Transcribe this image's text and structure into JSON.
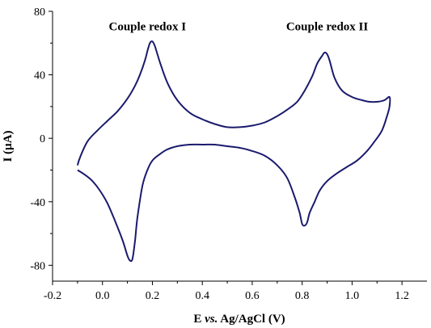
{
  "chart_data": {
    "type": "line",
    "xlabel": {
      "prefix": "E ",
      "italic": "vs.",
      "suffix": " Ag/AgCl (V)"
    },
    "ylabel": "I (µA)",
    "xlim": [
      -0.2,
      1.3
    ],
    "ylim": [
      -90,
      80
    ],
    "xticks": [
      -0.2,
      0.0,
      0.2,
      0.4,
      0.6,
      0.8,
      1.0,
      1.2
    ],
    "xtick_labels": [
      "-0.2",
      "0.0",
      "0.2",
      "0.4",
      "0.6",
      "0.8",
      "1.0",
      "1.2"
    ],
    "yticks": [
      -80,
      -40,
      0,
      40,
      80
    ],
    "ytick_labels": [
      "-80",
      "-40",
      "0",
      "40",
      "80"
    ],
    "grid": false,
    "line_color": "#1a1a6e",
    "annotations": [
      {
        "text": "Couple redox I",
        "x": 0.18,
        "y": 68
      },
      {
        "text": "Couple redox II",
        "x": 0.9,
        "y": 68
      }
    ],
    "series": [
      {
        "x": [
          -0.1,
          -0.09,
          -0.06,
          -0.02,
          0.02,
          0.06,
          0.1,
          0.13,
          0.15,
          0.17,
          0.18,
          0.19,
          0.2,
          0.21,
          0.23,
          0.26,
          0.3,
          0.35,
          0.4,
          0.45,
          0.5,
          0.55,
          0.6,
          0.65,
          0.7,
          0.74,
          0.78,
          0.81,
          0.84,
          0.86,
          0.88,
          0.89,
          0.9,
          0.91,
          0.93,
          0.96,
          1.0,
          1.04,
          1.07,
          1.1,
          1.13,
          1.15,
          1.15,
          1.14,
          1.12,
          1.09,
          1.06,
          1.02,
          0.98,
          0.94,
          0.9,
          0.87,
          0.85,
          0.83,
          0.82,
          0.81,
          0.8,
          0.79,
          0.77,
          0.74,
          0.7,
          0.65,
          0.6,
          0.55,
          0.5,
          0.45,
          0.4,
          0.35,
          0.3,
          0.26,
          0.23,
          0.2,
          0.18,
          0.16,
          0.14,
          0.13,
          0.12,
          0.11,
          0.1,
          0.08,
          0.05,
          0.02,
          -0.01,
          -0.04,
          -0.07,
          -0.1
        ],
        "y": [
          -17,
          -12,
          -2,
          5,
          11,
          17,
          25,
          33,
          40,
          49,
          55,
          60,
          61,
          58,
          48,
          35,
          24,
          16,
          12,
          9,
          7,
          7,
          8,
          10,
          14,
          18,
          23,
          30,
          39,
          47,
          52,
          54,
          53,
          49,
          38,
          30,
          26,
          24,
          23,
          23,
          24,
          26,
          20,
          14,
          5,
          -2,
          -8,
          -14,
          -18,
          -22,
          -27,
          -33,
          -40,
          -47,
          -53,
          -55,
          -54,
          -47,
          -37,
          -25,
          -17,
          -11,
          -8,
          -6,
          -5,
          -4,
          -4,
          -4,
          -5,
          -7,
          -10,
          -14,
          -20,
          -30,
          -50,
          -65,
          -76,
          -77,
          -74,
          -64,
          -52,
          -41,
          -33,
          -27,
          -23,
          -20
        ]
      }
    ]
  }
}
